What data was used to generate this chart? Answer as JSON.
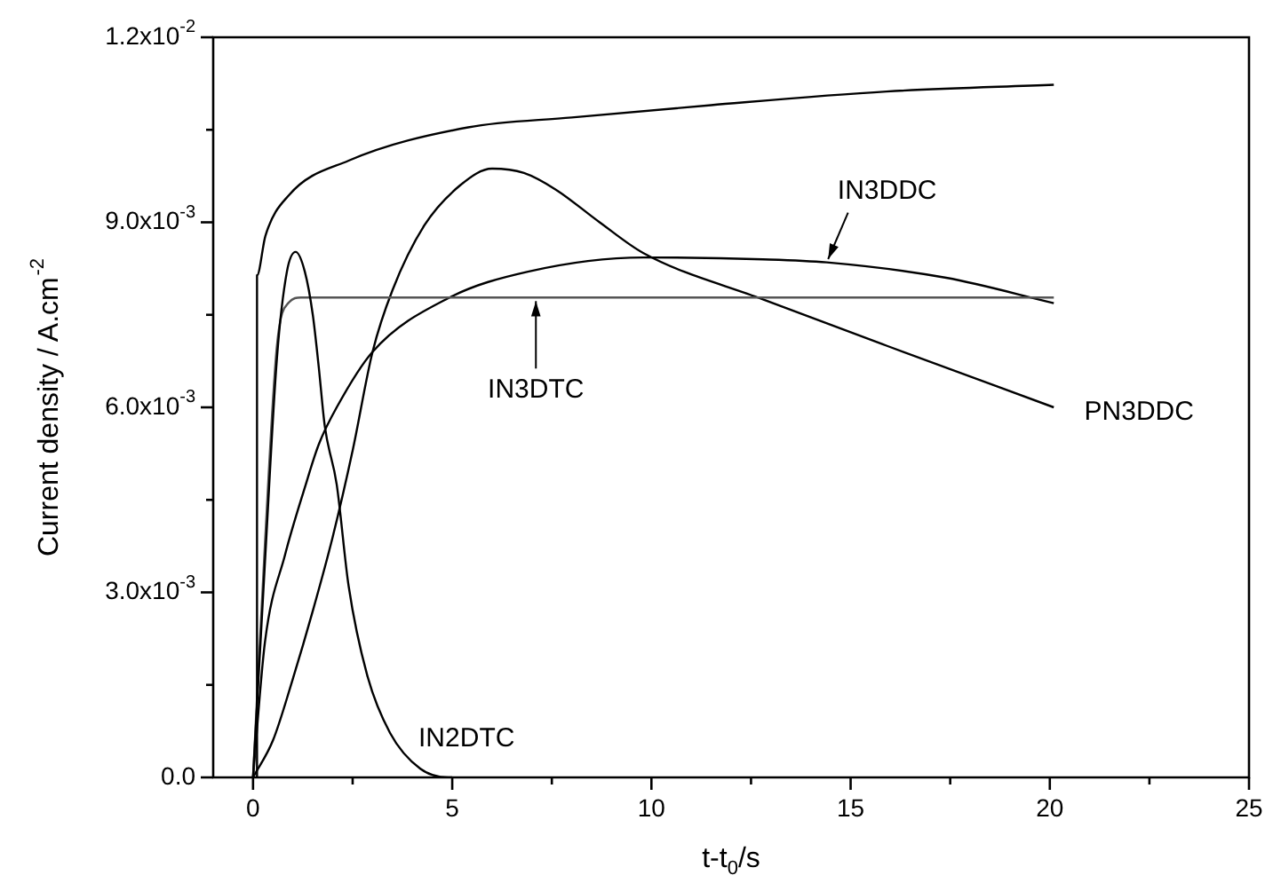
{
  "chart_data": {
    "type": "line",
    "xlabel": "t-t$_{0}$/s",
    "ylabel": "Current density / A.cm$^{-2}$",
    "xlim": [
      -1,
      25
    ],
    "ylim": [
      0,
      0.012
    ],
    "xticks": [
      0,
      {
        "value": 2.5,
        "label": null
      },
      5,
      {
        "value": 7.5,
        "label": null
      },
      10,
      {
        "value": 12.5,
        "label": null
      },
      15,
      {
        "value": 17.5,
        "label": null
      },
      20,
      {
        "value": 22.5,
        "label": null
      },
      25
    ],
    "yticks": [
      {
        "value": 0,
        "label": "0.0"
      },
      {
        "value": 0.0015,
        "label": null
      },
      {
        "value": 0.003,
        "label": "3.0x10$^{-3}$"
      },
      {
        "value": 0.0045,
        "label": null
      },
      {
        "value": 0.006,
        "label": "6.0x10$^{-3}$"
      },
      {
        "value": 0.0075,
        "label": null
      },
      {
        "value": 0.009,
        "label": "9.0x10$^{-3}$"
      },
      {
        "value": 0.0105,
        "label": null
      },
      {
        "value": 0.012,
        "label": "1.2x10$^{-2}$"
      }
    ],
    "legend": false,
    "series": [
      {
        "color": "#000000",
        "x": [
          0.1,
          0.1,
          0.31,
          0.9,
          2.4,
          5.4,
          8,
          11.5,
          15.9,
          20.1
        ],
        "values": [
          0,
          0.00814,
          0.00878,
          0.00944,
          0.01,
          0.01054,
          0.0107,
          0.0109,
          0.01112,
          0.01123
        ]
      },
      {
        "name": "IN2DTC",
        "color": "#000000",
        "x": [
          0,
          0.3,
          0.6,
          0.85,
          1.07,
          1.3,
          1.5,
          1.65,
          1.8,
          2.1,
          2.4,
          2.86,
          3.44,
          4.2,
          4.9,
          5.0
        ],
        "values": [
          0,
          0.0035,
          0.0068,
          0.0082,
          0.00852,
          0.0082,
          0.0075,
          0.00665,
          0.0057,
          0.00475,
          0.0031,
          0.00167,
          0.00072,
          0.00014,
          0,
          0
        ]
      },
      {
        "name": "IN3DTC",
        "color": "#555555",
        "x": [
          0,
          0.3,
          0.6,
          0.9,
          1.2,
          7.1,
          20.1
        ],
        "values": [
          0,
          0.0038,
          0.007,
          0.0077,
          0.00778,
          0.00778,
          0.00778
        ]
      },
      {
        "name": "IN3DDC",
        "color": "#000000",
        "x": [
          0,
          0.3,
          0.8,
          1.3,
          1.65,
          2.1,
          3.0,
          4.9,
          6.9,
          9.8,
          12.8,
          14.4,
          17.4,
          20.1
        ],
        "values": [
          0,
          0.0022,
          0.0036,
          0.0047,
          0.0054,
          0.006,
          0.0069,
          0.00777,
          0.0082,
          0.00843,
          0.0084,
          0.00835,
          0.0081,
          0.00769
        ]
      },
      {
        "name": "PN3DDC",
        "color": "#000000",
        "x": [
          0,
          0.5,
          1.0,
          1.5,
          2.0,
          2.5,
          3.0,
          3.5,
          4.3,
          5.2,
          6.0,
          6.8,
          7.6,
          8.7,
          9.8,
          12.8,
          15.9,
          20.1
        ],
        "values": [
          0,
          0.0006,
          0.0016,
          0.0027,
          0.0039,
          0.0053,
          0.0069,
          0.0079,
          0.00895,
          0.0096,
          0.00987,
          0.0098,
          0.00953,
          0.009,
          0.0085,
          0.00775,
          0.007,
          0.006
        ]
      }
    ]
  }
}
